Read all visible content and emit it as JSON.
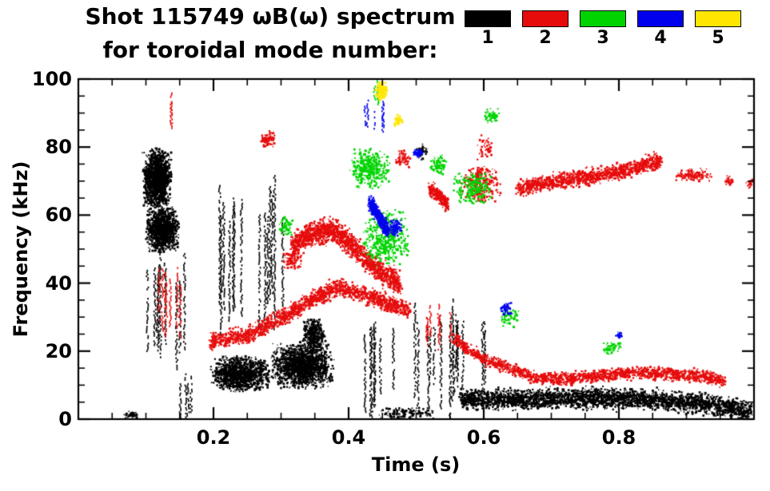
{
  "chart_data": {
    "type": "scatter",
    "title": "Shot 115749 ωB(ω) spectrum",
    "subtitle": "for toroidal mode number:",
    "xlabel": "Time (s)",
    "ylabel": "Frequency (kHz)",
    "xlim": [
      0.0,
      1.0
    ],
    "ylim": [
      0,
      100
    ],
    "xticks": [
      0.2,
      0.4,
      0.6,
      0.8
    ],
    "xtick_minor_interval": 0.05,
    "yticks": [
      0,
      20,
      40,
      60,
      80,
      100
    ],
    "ytick_minor_interval": 5,
    "grid": false,
    "background": "#ffffff",
    "axis_color": "#000000",
    "legend": {
      "position": "top-right",
      "entries": [
        {
          "label": "1",
          "color": "#000000"
        },
        {
          "label": "2",
          "color": "#e60c0c"
        },
        {
          "label": "3",
          "color": "#00d400"
        },
        {
          "label": "4",
          "color": "#0000ee"
        },
        {
          "label": "5",
          "color": "#ffe600"
        }
      ]
    },
    "series": [
      {
        "name": "toroidal-mode-1",
        "color": "#000000",
        "clusters": [
          {
            "type": "blob",
            "t": [
              0.093,
              0.138
            ],
            "f": [
              62,
              80
            ],
            "n": 1400,
            "s": 2
          },
          {
            "type": "blob",
            "t": [
              0.098,
              0.148
            ],
            "f": [
              49,
              63
            ],
            "n": 1100,
            "s": 2
          },
          {
            "type": "vlines",
            "t": [
              0.1,
              0.165
            ],
            "f": [
              14,
              50
            ],
            "lines": 9
          },
          {
            "type": "vlines",
            "t": [
              0.15,
              0.175
            ],
            "f": [
              0,
              14
            ],
            "lines": 4
          },
          {
            "type": "vlines",
            "t": [
              0.19,
              0.305
            ],
            "f": [
              24,
              72
            ],
            "lines": 14
          },
          {
            "type": "blob",
            "t": [
              0.193,
              0.285
            ],
            "f": [
              8,
              19
            ],
            "n": 1100,
            "s": 2
          },
          {
            "type": "blob",
            "t": [
              0.283,
              0.378
            ],
            "f": [
              9,
              23
            ],
            "n": 1500,
            "s": 2
          },
          {
            "type": "blob",
            "t": [
              0.33,
              0.365
            ],
            "f": [
              20,
              30
            ],
            "n": 350,
            "s": 2
          },
          {
            "type": "vlines",
            "t": [
              0.42,
              0.478
            ],
            "f": [
              0,
              32
            ],
            "lines": 7
          },
          {
            "type": "vlines",
            "t": [
              0.488,
              0.562
            ],
            "f": [
              0,
              36
            ],
            "lines": 9
          },
          {
            "type": "vlines",
            "t": [
              0.555,
              0.625
            ],
            "f": [
              8,
              33
            ],
            "lines": 7
          },
          {
            "type": "band",
            "path": [
              [
                0.565,
                6
              ],
              [
                0.65,
                6
              ],
              [
                0.75,
                6.5
              ],
              [
                0.85,
                6
              ],
              [
                0.92,
                5
              ],
              [
                0.965,
                3.5
              ],
              [
                0.995,
                2.5
              ]
            ],
            "w": 4,
            "n": 3000
          },
          {
            "type": "blob",
            "t": [
              0.065,
              0.09
            ],
            "f": [
              0,
              3
            ],
            "n": 40,
            "s": 2
          },
          {
            "type": "blob",
            "t": [
              0.44,
              0.53
            ],
            "f": [
              0,
              4
            ],
            "n": 120,
            "s": 2
          },
          {
            "type": "blob",
            "t": [
              0.497,
              0.517
            ],
            "f": [
              76,
              82
            ],
            "n": 28,
            "s": 2
          }
        ]
      },
      {
        "name": "toroidal-mode-2",
        "color": "#e60c0c",
        "clusters": [
          {
            "type": "vlines",
            "t": [
              0.105,
              0.158
            ],
            "f": [
              24,
              46
            ],
            "lines": 7
          },
          {
            "type": "vlines",
            "t": [
              0.126,
              0.138
            ],
            "f": [
              84,
              97
            ],
            "lines": 2
          },
          {
            "type": "band",
            "path": [
              [
                0.195,
                23
              ],
              [
                0.25,
                25
              ],
              [
                0.3,
                30
              ],
              [
                0.34,
                35
              ],
              [
                0.38,
                39
              ],
              [
                0.42,
                37
              ],
              [
                0.46,
                34
              ],
              [
                0.49,
                32
              ]
            ],
            "w": 3.5,
            "n": 1600
          },
          {
            "type": "blob",
            "t": [
              0.3,
              0.33
            ],
            "f": [
              44,
              50
            ],
            "n": 80,
            "s": 2
          },
          {
            "type": "band",
            "path": [
              [
                0.315,
                51
              ],
              [
                0.345,
                55
              ],
              [
                0.375,
                56
              ],
              [
                0.4,
                52
              ],
              [
                0.425,
                47
              ],
              [
                0.45,
                43
              ],
              [
                0.475,
                40
              ]
            ],
            "w": 5,
            "n": 1500
          },
          {
            "type": "vlines",
            "t": [
              0.5,
              0.555
            ],
            "f": [
              20,
              34
            ],
            "lines": 6
          },
          {
            "type": "band",
            "path": [
              [
                0.555,
                24
              ],
              [
                0.58,
                20
              ],
              [
                0.61,
                17
              ],
              [
                0.64,
                15
              ],
              [
                0.665,
                13.5
              ]
            ],
            "w": 2.5,
            "n": 450
          },
          {
            "type": "band",
            "path": [
              [
                0.665,
                12.5
              ],
              [
                0.72,
                12
              ],
              [
                0.77,
                13
              ],
              [
                0.82,
                14
              ],
              [
                0.87,
                13.5
              ],
              [
                0.92,
                13
              ],
              [
                0.955,
                11.5
              ]
            ],
            "w": 2.5,
            "n": 1300
          },
          {
            "type": "band",
            "path": [
              [
                0.518,
                68
              ],
              [
                0.532,
                66
              ],
              [
                0.545,
                63.5
              ]
            ],
            "w": 3,
            "n": 260
          },
          {
            "type": "blob",
            "t": [
              0.563,
              0.625
            ],
            "f": [
              64,
              75
            ],
            "n": 260,
            "s": 2
          },
          {
            "type": "blob",
            "t": [
              0.585,
              0.615
            ],
            "f": [
              76,
              84
            ],
            "n": 50,
            "s": 2
          },
          {
            "type": "band",
            "path": [
              [
                0.648,
                68
              ],
              [
                0.7,
                70
              ],
              [
                0.75,
                71.5
              ],
              [
                0.8,
                73
              ],
              [
                0.835,
                75
              ],
              [
                0.862,
                76.5
              ]
            ],
            "w": 3.2,
            "n": 1200
          },
          {
            "type": "blob",
            "t": [
              0.878,
              0.94
            ],
            "f": [
              70,
              74
            ],
            "n": 120,
            "s": 2
          },
          {
            "type": "blob",
            "t": [
              0.953,
              0.968
            ],
            "f": [
              69,
              72
            ],
            "n": 25,
            "s": 2
          },
          {
            "type": "blob",
            "t": [
              0.985,
              1.0
            ],
            "f": [
              68,
              71
            ],
            "n": 20,
            "s": 2
          },
          {
            "type": "blob",
            "t": [
              0.268,
              0.292
            ],
            "f": [
              80,
              85
            ],
            "n": 90,
            "s": 2
          },
          {
            "type": "blob",
            "t": [
              0.468,
              0.492
            ],
            "f": [
              74,
              80
            ],
            "n": 60,
            "s": 2
          }
        ]
      },
      {
        "name": "toroidal-mode-3",
        "color": "#00d400",
        "clusters": [
          {
            "type": "blob",
            "t": [
              0.398,
              0.462
            ],
            "f": [
              68,
              80
            ],
            "n": 380,
            "s": 2
          },
          {
            "type": "blob",
            "t": [
              0.418,
              0.49
            ],
            "f": [
              45,
              62
            ],
            "n": 420,
            "s": 2
          },
          {
            "type": "vlines",
            "t": [
              0.433,
              0.45
            ],
            "f": [
              92,
              100
            ],
            "lines": 3
          },
          {
            "type": "blob",
            "t": [
              0.518,
              0.545
            ],
            "f": [
              72,
              78
            ],
            "n": 80,
            "s": 2
          },
          {
            "type": "blob",
            "t": [
              0.553,
              0.612
            ],
            "f": [
              63,
              73
            ],
            "n": 230,
            "s": 2
          },
          {
            "type": "blob",
            "t": [
              0.598,
              0.622
            ],
            "f": [
              87,
              92
            ],
            "n": 60,
            "s": 2
          },
          {
            "type": "blob",
            "t": [
              0.623,
              0.652
            ],
            "f": [
              27,
              33
            ],
            "n": 60,
            "s": 2
          },
          {
            "type": "blob",
            "t": [
              0.772,
              0.802
            ],
            "f": [
              19,
              23
            ],
            "n": 55,
            "s": 2
          },
          {
            "type": "blob",
            "t": [
              0.293,
              0.318
            ],
            "f": [
              54,
              60
            ],
            "n": 55,
            "s": 2
          }
        ]
      },
      {
        "name": "toroidal-mode-4",
        "color": "#0000ee",
        "clusters": [
          {
            "type": "vlines",
            "t": [
              0.398,
              0.452
            ],
            "f": [
              84,
              95
            ],
            "lines": 5
          },
          {
            "type": "band",
            "path": [
              [
                0.43,
                64
              ],
              [
                0.44,
                61
              ],
              [
                0.45,
                57.5
              ],
              [
                0.458,
                55
              ]
            ],
            "w": 3,
            "n": 420
          },
          {
            "type": "blob",
            "t": [
              0.458,
              0.478
            ],
            "f": [
              54,
              59
            ],
            "n": 90,
            "s": 2
          },
          {
            "type": "blob",
            "t": [
              0.493,
              0.508
            ],
            "f": [
              77,
              80
            ],
            "n": 45,
            "s": 2
          },
          {
            "type": "blob",
            "t": [
              0.622,
              0.642
            ],
            "f": [
              30,
              35
            ],
            "n": 45,
            "s": 2
          },
          {
            "type": "blob",
            "t": [
              0.793,
              0.806
            ],
            "f": [
              24,
              26
            ],
            "n": 18,
            "s": 2
          }
        ]
      },
      {
        "name": "toroidal-mode-5",
        "color": "#ffe600",
        "clusters": [
          {
            "type": "blob",
            "t": [
              0.438,
              0.456
            ],
            "f": [
              94,
              100
            ],
            "n": 140,
            "s": 2
          },
          {
            "type": "blob",
            "t": [
              0.466,
              0.479
            ],
            "f": [
              86,
              90
            ],
            "n": 40,
            "s": 2
          }
        ]
      }
    ]
  }
}
